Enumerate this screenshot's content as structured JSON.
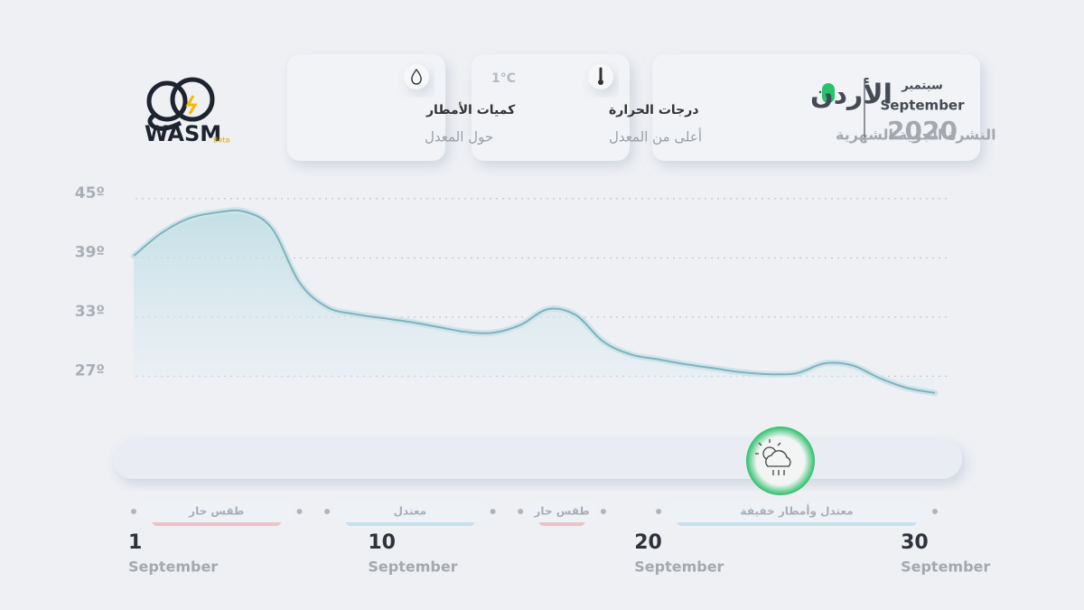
{
  "logo": {
    "name": "WASM",
    "badge": "Beta"
  },
  "cards": [
    {
      "title": "كميات الأمطار",
      "subtitle": "حول المعدل"
    },
    {
      "title": "درجات الحرارة",
      "subtitle": "أعلى من المعدل",
      "note": "1°C"
    }
  ],
  "header": {
    "country": "الأردن",
    "bulletin": "النشرة الجوية الشهرية",
    "month_ar": "سبتمبر",
    "month_en": "September",
    "year": "2020"
  },
  "chart_data": {
    "type": "line",
    "x": [
      1,
      2,
      3,
      4,
      5,
      6,
      7,
      8,
      9,
      10,
      11,
      12,
      13,
      14,
      15,
      16,
      17,
      18,
      19,
      20,
      21,
      22,
      23,
      24,
      25,
      26,
      27,
      28,
      29,
      30
    ],
    "series": [
      {
        "color": "#7fb3be",
        "values": [
          39.2,
          41.5,
          43,
          43.6,
          43.7,
          42,
          36.5,
          34,
          33.3,
          32.9,
          32.5,
          32,
          31.5,
          31.4,
          32.2,
          33.8,
          33.2,
          30.5,
          29.2,
          28.7,
          28.2,
          27.8,
          27.4,
          27.2,
          27.3,
          28.3,
          28.1,
          26.8,
          25.8,
          25.3
        ]
      }
    ],
    "xlim": [
      1,
      30
    ],
    "ylim": [
      24,
      46
    ],
    "yticks": [
      {
        "value": 27,
        "label": "27º"
      },
      {
        "value": 33,
        "label": "33º"
      },
      {
        "value": 39,
        "label": "39º"
      },
      {
        "value": 45,
        "label": "45º"
      }
    ],
    "grid": true,
    "xticks": [
      1,
      10,
      20,
      30
    ],
    "x_tick_sublabel": "September",
    "periods": [
      {
        "label": "طقس حار",
        "start": 1,
        "end": 7,
        "color": "#e8a4a8"
      },
      {
        "label": "معتدل",
        "start": 8,
        "end": 14,
        "color": "#a9d6e6"
      },
      {
        "label": "طقس حار",
        "start": 15,
        "end": 18,
        "color": "#e8a4a8"
      },
      {
        "label": "معتدل وأمطار خفيفة",
        "start": 20,
        "end": 30,
        "color": "#a9d6e6"
      }
    ]
  }
}
